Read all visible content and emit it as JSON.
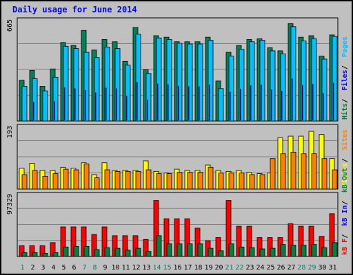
{
  "chart_data": {
    "type": "bar",
    "title": "Daily usage for June 2014",
    "categories": [
      "1",
      "2",
      "3",
      "4",
      "5",
      "6",
      "7",
      "8",
      "9",
      "10",
      "11",
      "12",
      "13",
      "14",
      "15",
      "16",
      "17",
      "18",
      "19",
      "20",
      "21",
      "22",
      "23",
      "24",
      "25",
      "26",
      "27",
      "28",
      "29",
      "30",
      "31"
    ],
    "weekend_days": [
      "1",
      "7",
      "8",
      "14",
      "15",
      "21",
      "22",
      "28",
      "29"
    ],
    "panels": [
      {
        "id": "top",
        "scale_max_label": "665",
        "ymax": 665,
        "series": [
          {
            "name": "Hits",
            "color": "#00805c",
            "values": [
              270,
              335,
              230,
              345,
              520,
              500,
              600,
              470,
              540,
              525,
              395,
              620,
              340,
              565,
              555,
              525,
              525,
              525,
              555,
              265,
              455,
              500,
              540,
              545,
              485,
              465,
              645,
              555,
              565,
              430,
              570
            ]
          },
          {
            "name": "Files",
            "color": "#00c0ff",
            "values": [
              230,
              280,
              200,
              290,
              495,
              480,
              455,
              420,
              490,
              480,
              370,
              575,
              315,
              550,
              540,
              515,
              510,
              510,
              535,
              215,
              430,
              475,
              525,
              535,
              465,
              445,
              625,
              530,
              545,
              410,
              560
            ]
          },
          {
            "name": "Pages",
            "color": "#00c0ff",
            "values": [],
            "legend_color": "#00c0ff"
          }
        ],
        "legend": [
          {
            "text": "Hits",
            "color": "#008040"
          },
          {
            "text": "Files",
            "color": "#0000ff"
          },
          {
            "text": "Pages",
            "color": "#00c0ff"
          }
        ]
      },
      {
        "id": "mid",
        "scale_max_label": "193",
        "ymax": 193,
        "series": [
          {
            "name": "Visits",
            "color": "#ffff00",
            "values": [
              65,
              80,
              58,
              58,
              68,
              65,
              82,
              45,
              82,
              58,
              58,
              58,
              88,
              55,
              50,
              62,
              58,
              58,
              75,
              58,
              55,
              58,
              52,
              48,
              50,
              160,
              165,
              165,
              180,
              170,
              95
            ]
          },
          {
            "name": "Sites",
            "color": "#ff8000",
            "values": [
              45,
              58,
              40,
              48,
              62,
              60,
              78,
              35,
              60,
              55,
              55,
              55,
              60,
              48,
              48,
              52,
              52,
              52,
              68,
              50,
              50,
              50,
              45,
              45,
              95,
              110,
              115,
              110,
              110,
              95,
              60
            ]
          }
        ],
        "legend": [
          {
            "text": "Visits",
            "color": "#ffff00"
          },
          {
            "text": "Sites",
            "color": "#ff8000"
          }
        ]
      },
      {
        "id": "bottom",
        "scale_max_label": "97329",
        "ymax": 97329,
        "series": [
          {
            "name": "kB F",
            "color": "#ff0000",
            "values": [
              17000,
              17000,
              17000,
              22000,
              47000,
              47000,
              47000,
              35000,
              47000,
              33000,
              33000,
              33000,
              27000,
              89000,
              60000,
              60000,
              60000,
              45000,
              25000,
              30000,
              89000,
              48000,
              48000,
              30000,
              30000,
              30000,
              52000,
              48000,
              48000,
              32000,
              68000
            ]
          },
          {
            "name": "kB Out",
            "color": "#008040",
            "values": [
              6000,
              6000,
              5000,
              6000,
              15000,
              16000,
              16000,
              11000,
              14000,
              13000,
              10000,
              13000,
              8000,
              33000,
              20000,
              20000,
              20000,
              20000,
              13000,
              9000,
              20000,
              15000,
              14000,
              12000,
              13000,
              19000,
              18000,
              18000,
              19000,
              14000,
              22000
            ]
          }
        ],
        "legend": [
          {
            "text": "kB F",
            "color": "#ff0000"
          },
          {
            "text": "kB In",
            "color": "#0000ff"
          },
          {
            "text": "kB Out",
            "color": "#008040"
          }
        ]
      }
    ],
    "grid": true
  }
}
